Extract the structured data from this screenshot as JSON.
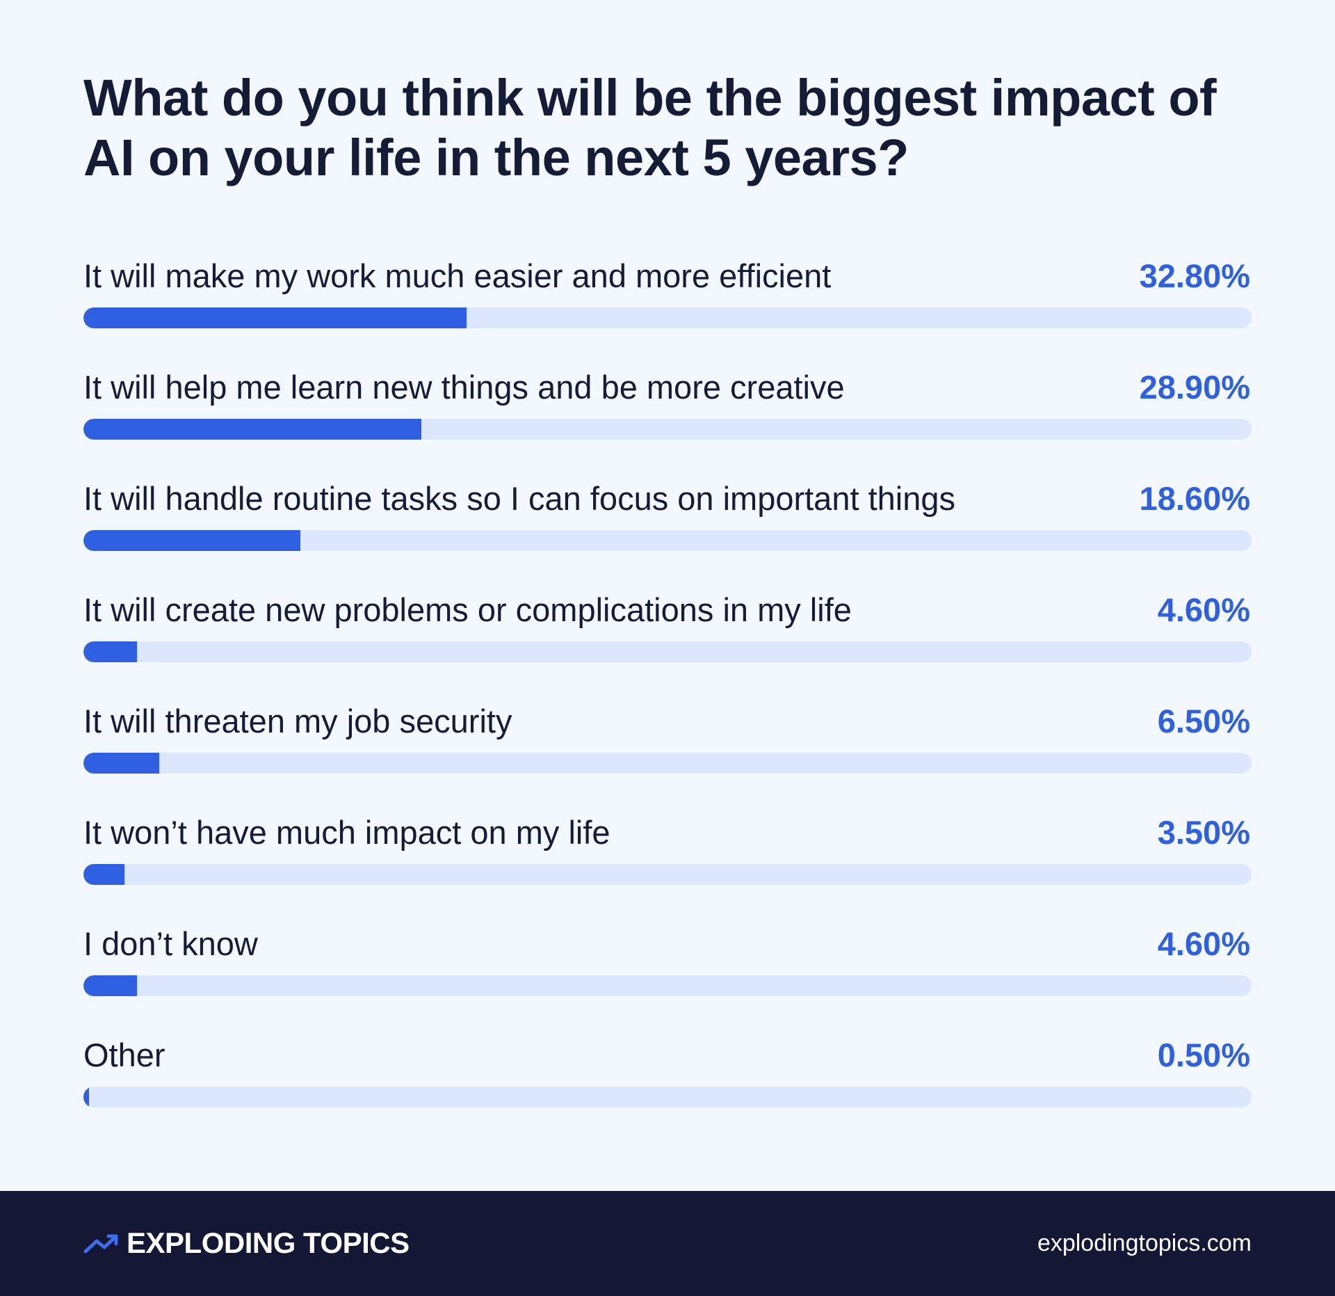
{
  "chart_data": {
    "type": "bar",
    "orientation": "horizontal",
    "title": "What do you think will be the biggest impact of AI on your life in the next 5 years?",
    "xlabel": "",
    "ylabel": "",
    "xlim": [
      0,
      100
    ],
    "unit": "%",
    "categories": [
      "It will make my work much easier and more efficient",
      "It will help me learn new things and be more creative",
      "It will handle routine tasks so I can focus on important things",
      "It will create new problems or complications in my life",
      "It will threaten my job security",
      "It won’t have much impact on my life",
      "I don’t know",
      "Other"
    ],
    "values": [
      32.8,
      28.9,
      18.6,
      4.6,
      6.5,
      3.5,
      4.6,
      0.5
    ],
    "value_labels": [
      "32.80%",
      "28.90%",
      "18.60%",
      "4.60%",
      "6.50%",
      "3.50%",
      "4.60%",
      "0.50%"
    ]
  },
  "colors": {
    "background": "#f3f7fe",
    "bar_fill": "#2f5fe3",
    "bar_track": "#dce7fd",
    "value_text": "#2f5fe3",
    "title_text": "#161b36",
    "footer_background": "#141834",
    "footer_text": "#ffffff"
  },
  "footer": {
    "brand_icon": "trending-up-arrow-icon",
    "brand_name": "EXPLODING TOPICS",
    "url": "explodingtopics.com"
  }
}
